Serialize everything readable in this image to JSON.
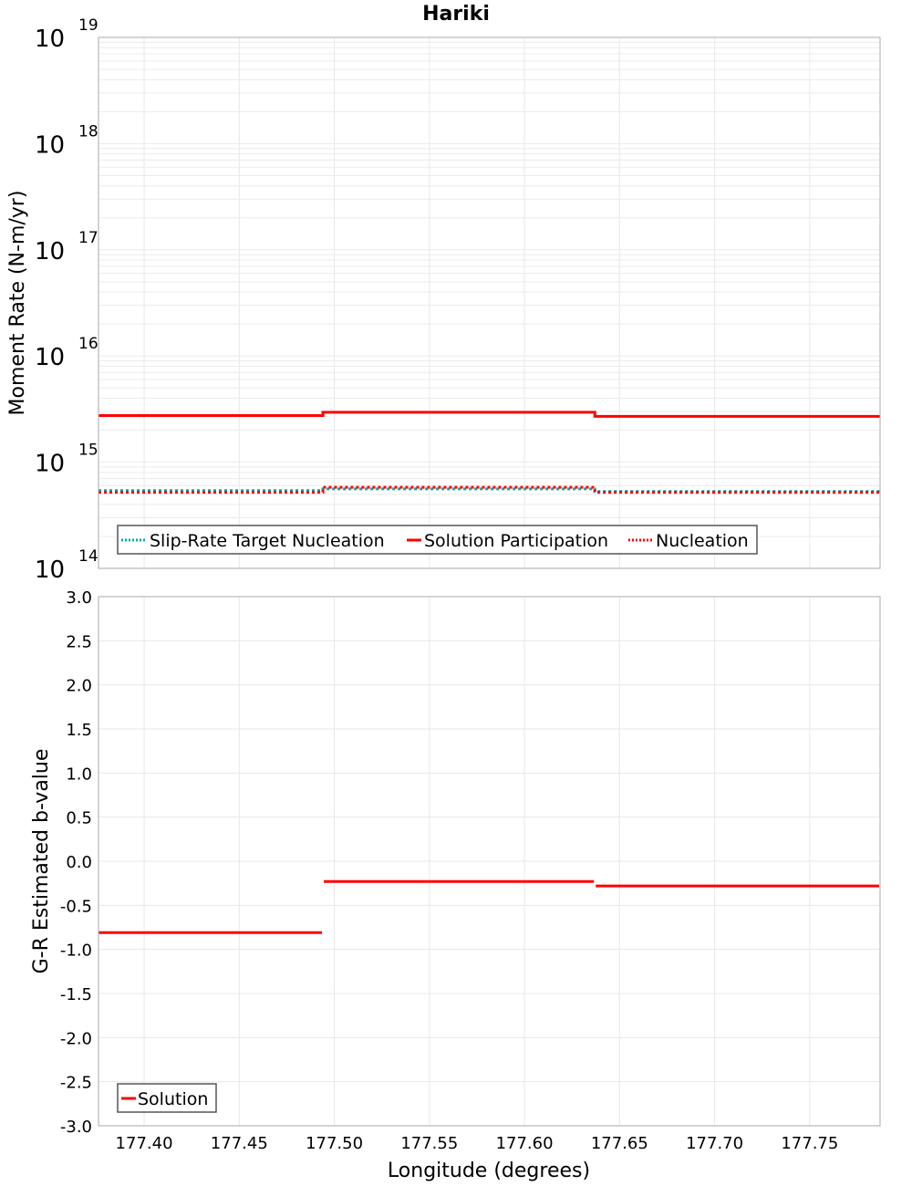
{
  "chart_data": [
    {
      "type": "line",
      "title": "Hariki",
      "xlabel": "Longitude (degrees)",
      "ylabel": "Moment Rate (N-m/yr)",
      "yscale": "log",
      "ylim": [
        100000000000000.0,
        1e+19
      ],
      "xlim": [
        177.376,
        177.787
      ],
      "y_tick_labels": [
        "10^14",
        "10^15",
        "10^16",
        "10^17",
        "10^18",
        "10^19"
      ],
      "grid": true,
      "legend_position": "lower-left",
      "segment_edges": [
        177.376,
        177.494,
        177.637,
        177.787
      ],
      "series": [
        {
          "name": "Slip-Rate Target Nucleation",
          "style": "dotted",
          "color": "#00aaaa",
          "values": [
            540000000000000.0,
            560000000000000.0,
            530000000000000.0
          ]
        },
        {
          "name": "Solution Participation",
          "style": "solid",
          "color": "#ff0000",
          "values": [
            2750000000000000.0,
            2950000000000000.0,
            2700000000000000.0
          ]
        },
        {
          "name": "Nucleation",
          "style": "dotted",
          "color": "#ff0000",
          "values": [
            520000000000000.0,
            580000000000000.0,
            520000000000000.0
          ]
        }
      ]
    },
    {
      "type": "line",
      "title": "",
      "xlabel": "Longitude (degrees)",
      "ylabel": "G-R Estimated b-value",
      "ylim": [
        -3.0,
        3.0
      ],
      "xlim": [
        177.376,
        177.787
      ],
      "x_tick_labels": [
        "177.40",
        "177.45",
        "177.50",
        "177.55",
        "177.60",
        "177.65",
        "177.70",
        "177.75"
      ],
      "y_tick_labels": [
        "3.0",
        "2.5",
        "2.0",
        "1.5",
        "1.0",
        "0.5",
        "0.0",
        "-0.5",
        "-1.0",
        "-1.5",
        "-2.0",
        "-2.5",
        "-3.0"
      ],
      "grid": true,
      "legend_position": "lower-left",
      "segment_edges": [
        177.376,
        177.494,
        177.637,
        177.787
      ],
      "series": [
        {
          "name": "Solution",
          "style": "solid",
          "color": "#ff0000",
          "values": [
            -0.81,
            -0.23,
            -0.28
          ]
        }
      ]
    }
  ],
  "labels": {
    "title": "Hariki",
    "top_ylabel": "Moment Rate (N-m/yr)",
    "bottom_ylabel": "G-R Estimated b-value",
    "xlabel": "Longitude (degrees)",
    "top_legend": [
      "Slip-Rate Target Nucleation",
      "Solution Participation",
      "Nucleation"
    ],
    "bottom_legend": [
      "Solution"
    ]
  }
}
